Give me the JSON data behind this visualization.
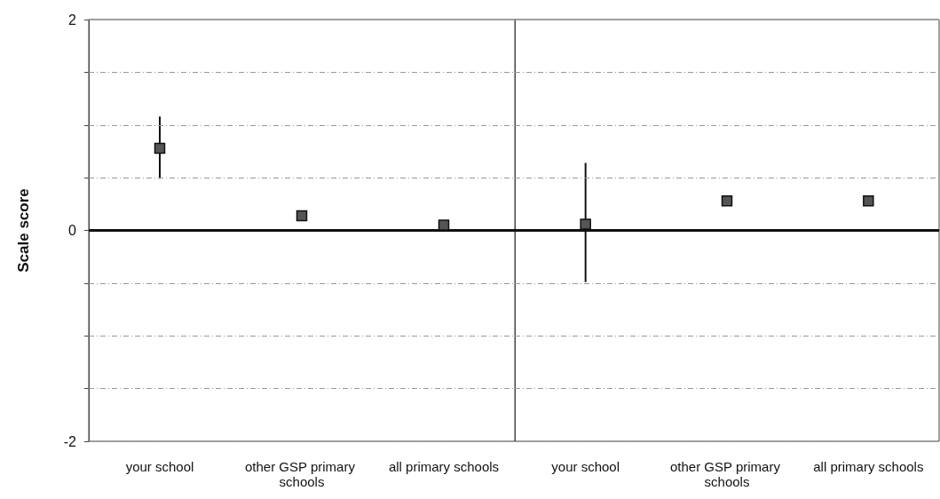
{
  "chart_data": [
    {
      "type": "scatter",
      "ylabel": "Scale score",
      "categories": [
        "your school",
        "other GSP primary schools",
        "all primary schools"
      ],
      "values": [
        0.78,
        0.14,
        0.05
      ],
      "errors": [
        [
          0.49,
          1.08
        ],
        [
          0.1,
          0.18
        ],
        null
      ],
      "color": "#555555",
      "marker": "square",
      "ylim": [
        -2,
        2
      ],
      "yticks": [
        -2,
        {
          "value": -1.5,
          "label": null
        },
        {
          "value": -1,
          "label": null
        },
        {
          "value": -0.5,
          "label": null
        },
        0,
        {
          "value": 0.5,
          "label": null
        },
        {
          "value": 1,
          "label": null
        },
        {
          "value": 1.5,
          "label": null
        },
        2
      ],
      "grid": "y",
      "ref_lines": [
        {
          "axis": "y",
          "value": 0,
          "color": "#111111"
        }
      ]
    },
    {
      "type": "scatter",
      "categories": [
        "your school",
        "other GSP primary schools",
        "all primary schools"
      ],
      "values": [
        0.06,
        0.28,
        0.28
      ],
      "errors": [
        [
          -0.49,
          0.64
        ],
        [
          0.24,
          0.33
        ],
        null
      ],
      "color": "#555555",
      "marker": "square",
      "ylim": [
        -2,
        2
      ],
      "yticks": [
        -2,
        {
          "value": -1.5,
          "label": null
        },
        {
          "value": -1,
          "label": null
        },
        {
          "value": -0.5,
          "label": null
        },
        0,
        {
          "value": 0.5,
          "label": null
        },
        {
          "value": 1,
          "label": null
        },
        {
          "value": 1.5,
          "label": null
        },
        2
      ],
      "grid": "y",
      "tick_labels": "x",
      "ref_lines": [
        {
          "axis": "y",
          "value": 0,
          "color": "#111111"
        }
      ]
    }
  ]
}
